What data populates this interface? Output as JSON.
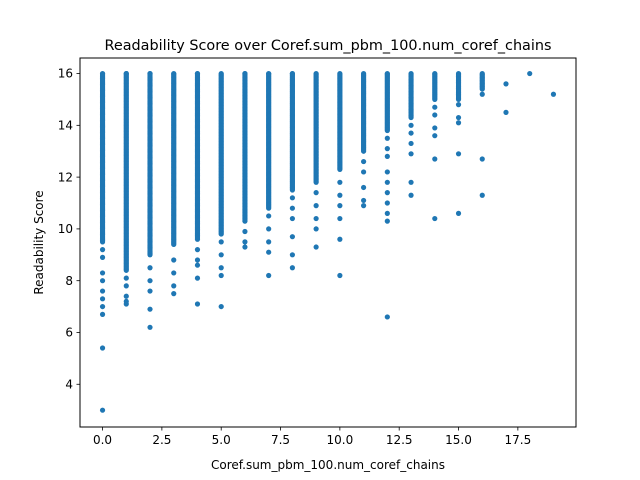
{
  "chart_data": {
    "type": "scatter",
    "title": "Readability Score over Coref.sum_pbm_100.num_coref_chains",
    "xlabel": "Coref.sum_pbm_100.num_coref_chains",
    "ylabel": "Readability Score",
    "xlim": [
      -0.95,
      19.95
    ],
    "ylim": [
      2.35,
      16.6
    ],
    "xticks": [
      0.0,
      2.5,
      5.0,
      7.5,
      10.0,
      12.5,
      15.0,
      17.5
    ],
    "xtick_labels": [
      "0.0",
      "2.5",
      "5.0",
      "7.5",
      "10.0",
      "12.5",
      "15.0",
      "17.5"
    ],
    "yticks": [
      4,
      6,
      8,
      10,
      12,
      14,
      16
    ],
    "ytick_labels": [
      "4",
      "6",
      "8",
      "10",
      "12",
      "14",
      "16"
    ],
    "grid": false,
    "legend": "none",
    "color": "#1f77b4",
    "series": [
      {
        "columns": [
          {
            "x": 0,
            "dense_range": [
              9.5,
              16.0
            ],
            "outliers": [
              9.2,
              8.9,
              8.3,
              8.0,
              7.6,
              7.3,
              7.0,
              6.7,
              5.4,
              3.0
            ]
          },
          {
            "x": 1,
            "dense_range": [
              8.4,
              16.0
            ],
            "outliers": [
              8.1,
              7.8,
              7.4,
              7.2,
              7.1
            ]
          },
          {
            "x": 2,
            "dense_range": [
              9.0,
              16.0
            ],
            "outliers": [
              8.5,
              8.0,
              7.6,
              6.9,
              6.2
            ]
          },
          {
            "x": 3,
            "dense_range": [
              9.4,
              16.0
            ],
            "outliers": [
              8.8,
              8.3,
              7.8,
              7.5
            ]
          },
          {
            "x": 4,
            "dense_range": [
              9.6,
              16.0
            ],
            "outliers": [
              9.2,
              8.8,
              8.6,
              8.1,
              7.1
            ]
          },
          {
            "x": 5,
            "dense_range": [
              9.8,
              16.0
            ],
            "outliers": [
              9.5,
              9.0,
              8.5,
              8.2,
              7.0
            ]
          },
          {
            "x": 6,
            "dense_range": [
              10.3,
              16.0
            ],
            "outliers": [
              9.9,
              9.5,
              9.3
            ]
          },
          {
            "x": 7,
            "dense_range": [
              10.8,
              16.0
            ],
            "outliers": [
              10.5,
              10.0,
              9.5,
              9.1,
              8.2
            ]
          },
          {
            "x": 8,
            "dense_range": [
              11.5,
              16.0
            ],
            "outliers": [
              11.2,
              10.8,
              10.4,
              9.7,
              9.0,
              8.5
            ]
          },
          {
            "x": 9,
            "dense_range": [
              11.8,
              16.0
            ],
            "outliers": [
              11.4,
              10.9,
              10.4,
              10.0,
              9.3
            ]
          },
          {
            "x": 10,
            "dense_range": [
              12.3,
              16.0
            ],
            "outliers": [
              11.8,
              11.3,
              10.9,
              10.4,
              9.6,
              8.2
            ]
          },
          {
            "x": 11,
            "dense_range": [
              13.0,
              16.0
            ],
            "outliers": [
              12.6,
              12.2,
              11.6,
              11.1,
              10.9
            ]
          },
          {
            "x": 12,
            "dense_range": [
              13.8,
              16.0
            ],
            "outliers": [
              13.5,
              13.1,
              12.8,
              12.2,
              11.8,
              11.4,
              11.0,
              10.6,
              10.3,
              6.6
            ]
          },
          {
            "x": 13,
            "dense_range": [
              14.3,
              16.0
            ],
            "outliers": [
              14.0,
              13.7,
              13.3,
              12.9,
              11.8,
              11.3
            ]
          },
          {
            "x": 14,
            "dense_range": [
              15.0,
              16.0
            ],
            "outliers": [
              14.7,
              14.4,
              13.9,
              13.6,
              12.7,
              10.4
            ]
          },
          {
            "x": 15,
            "dense_range": [
              15.0,
              16.0
            ],
            "outliers": [
              14.8,
              14.3,
              14.1,
              12.9,
              10.6
            ]
          },
          {
            "x": 16,
            "dense_range": [
              15.4,
              16.0
            ],
            "outliers": [
              15.2,
              12.7,
              11.3
            ]
          },
          {
            "x": 17,
            "points": [
              15.6,
              14.5
            ]
          },
          {
            "x": 18,
            "points": [
              16.0
            ]
          },
          {
            "x": 19,
            "points": [
              15.2
            ]
          }
        ]
      }
    ]
  }
}
